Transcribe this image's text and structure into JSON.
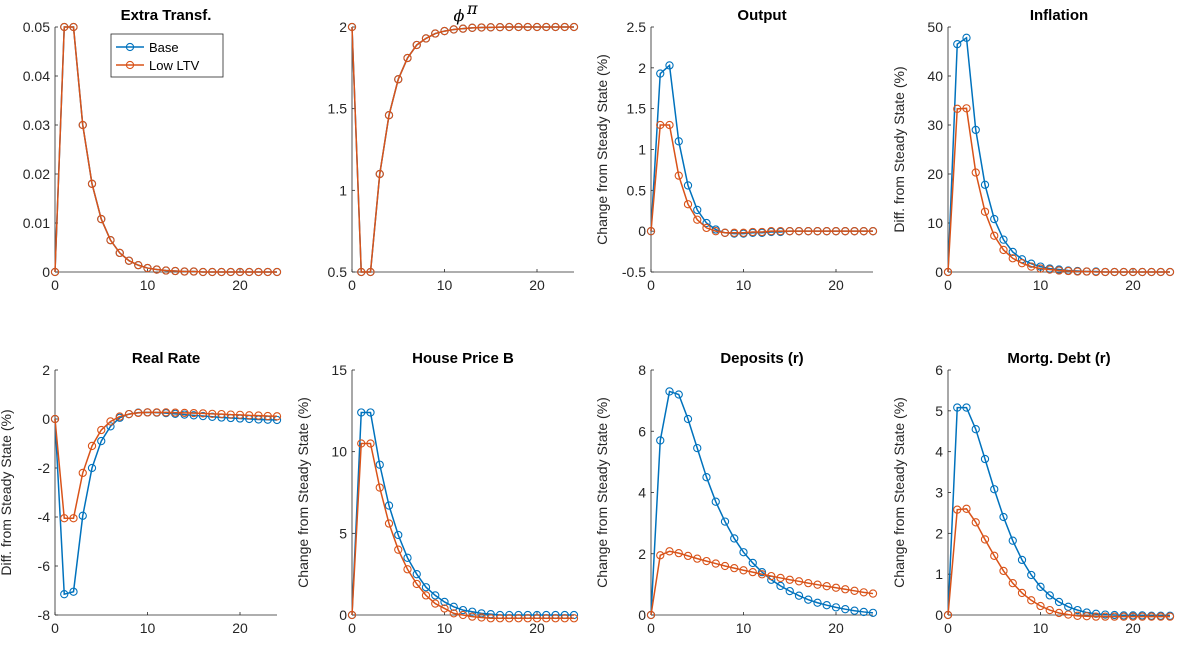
{
  "chart_data": [
    {
      "type": "line",
      "title": "Extra Transf.",
      "ylabel": "",
      "xlim": [
        0,
        24
      ],
      "ylim": [
        0,
        0.05
      ],
      "xticks": [
        0,
        10,
        20
      ],
      "xtick_labels": [
        "0",
        "10",
        "20"
      ],
      "yticks": [
        0,
        0.01,
        0.02,
        0.03,
        0.04,
        0.05
      ],
      "ytick_labels": [
        "0",
        "0.01",
        "0.02",
        "0.03",
        "0.04",
        "0.05"
      ],
      "x": [
        0,
        1,
        2,
        3,
        4,
        5,
        6,
        7,
        8,
        9,
        10,
        11,
        12,
        13,
        14,
        15,
        16,
        17,
        18,
        19,
        20,
        21,
        22,
        23,
        24
      ],
      "series": [
        {
          "name": "Base",
          "values": [
            0,
            0.05,
            0.05,
            0.03,
            0.018,
            0.0108,
            0.0065,
            0.0039,
            0.0023,
            0.0014,
            0.0008,
            0.0005,
            0.0003,
            0.0002,
            0.0001,
            0.0001,
            0,
            0,
            0,
            0,
            0,
            0,
            0,
            0,
            0
          ]
        },
        {
          "name": "Low LTV",
          "values": [
            0,
            0.05,
            0.05,
            0.03,
            0.018,
            0.0108,
            0.0065,
            0.0039,
            0.0023,
            0.0014,
            0.0008,
            0.0005,
            0.0003,
            0.0002,
            0.0001,
            0.0001,
            0,
            0,
            0,
            0,
            0,
            0,
            0,
            0,
            0
          ]
        }
      ],
      "legend": {
        "placement": "top-center",
        "entries": [
          "Base",
          "Low LTV"
        ]
      }
    },
    {
      "type": "line",
      "title": "ϕ",
      "title_superscript": "π",
      "ylabel": "",
      "xlim": [
        0,
        24
      ],
      "ylim": [
        0.5,
        2
      ],
      "xticks": [
        0,
        10,
        20
      ],
      "xtick_labels": [
        "0",
        "10",
        "20"
      ],
      "yticks": [
        0.5,
        1,
        1.5,
        2
      ],
      "ytick_labels": [
        "0.5",
        "1",
        "1.5",
        "2"
      ],
      "x": [
        0,
        1,
        2,
        3,
        4,
        5,
        6,
        7,
        8,
        9,
        10,
        11,
        12,
        13,
        14,
        15,
        16,
        17,
        18,
        19,
        20,
        21,
        22,
        23,
        24
      ],
      "series": [
        {
          "name": "Base",
          "values": [
            2,
            0.5,
            0.5,
            1.1,
            1.46,
            1.68,
            1.81,
            1.89,
            1.93,
            1.96,
            1.975,
            1.985,
            1.99,
            1.995,
            1.997,
            1.998,
            1.999,
            2,
            2,
            2,
            2,
            2,
            2,
            2,
            2
          ]
        },
        {
          "name": "Low LTV",
          "values": [
            2,
            0.5,
            0.5,
            1.1,
            1.46,
            1.68,
            1.81,
            1.89,
            1.93,
            1.96,
            1.975,
            1.985,
            1.99,
            1.995,
            1.997,
            1.998,
            1.999,
            2,
            2,
            2,
            2,
            2,
            2,
            2,
            2
          ]
        }
      ]
    },
    {
      "type": "line",
      "title": "Output",
      "ylabel": "Change from Steady State (%)",
      "xlim": [
        0,
        24
      ],
      "ylim": [
        -0.5,
        2.5
      ],
      "xticks": [
        0,
        10,
        20
      ],
      "xtick_labels": [
        "0",
        "10",
        "20"
      ],
      "yticks": [
        -0.5,
        0,
        0.5,
        1,
        1.5,
        2,
        2.5
      ],
      "ytick_labels": [
        "-0.5",
        "0",
        "0.5",
        "1",
        "1.5",
        "2",
        "2.5"
      ],
      "x": [
        0,
        1,
        2,
        3,
        4,
        5,
        6,
        7,
        8,
        9,
        10,
        11,
        12,
        13,
        14,
        15,
        16,
        17,
        18,
        19,
        20,
        21,
        22,
        23,
        24
      ],
      "series": [
        {
          "name": "Base",
          "values": [
            0,
            1.93,
            2.03,
            1.1,
            0.56,
            0.26,
            0.1,
            0.02,
            -0.02,
            -0.03,
            -0.03,
            -0.02,
            -0.02,
            -0.01,
            -0.01,
            0,
            0,
            0,
            0,
            0,
            0,
            0,
            0,
            0,
            0
          ]
        },
        {
          "name": "Low LTV",
          "values": [
            0,
            1.3,
            1.3,
            0.68,
            0.33,
            0.14,
            0.04,
            0,
            -0.02,
            -0.02,
            -0.02,
            -0.01,
            -0.01,
            0,
            0,
            0,
            0,
            0,
            0,
            0,
            0,
            0,
            0,
            0,
            0
          ]
        }
      ]
    },
    {
      "type": "line",
      "title": "Inflation",
      "ylabel": "Diff. from Steady State (%)",
      "xlim": [
        0,
        24
      ],
      "ylim": [
        0,
        50
      ],
      "xticks": [
        0,
        10,
        20
      ],
      "xtick_labels": [
        "0",
        "10",
        "20"
      ],
      "yticks": [
        0,
        10,
        20,
        30,
        40,
        50
      ],
      "ytick_labels": [
        "0",
        "10",
        "20",
        "30",
        "40",
        "50"
      ],
      "x": [
        0,
        1,
        2,
        3,
        4,
        5,
        6,
        7,
        8,
        9,
        10,
        11,
        12,
        13,
        14,
        15,
        16,
        17,
        18,
        19,
        20,
        21,
        22,
        23,
        24
      ],
      "series": [
        {
          "name": "Base",
          "values": [
            0,
            46.5,
            47.8,
            29,
            17.8,
            10.8,
            6.6,
            4.1,
            2.6,
            1.7,
            1.1,
            0.7,
            0.5,
            0.3,
            0.2,
            0.1,
            0.1,
            0,
            0,
            0,
            0,
            0,
            0,
            0,
            0
          ]
        },
        {
          "name": "Low LTV",
          "values": [
            0,
            33.3,
            33.4,
            20.3,
            12.3,
            7.4,
            4.5,
            2.8,
            1.8,
            1.1,
            0.7,
            0.5,
            0.3,
            0.2,
            0.1,
            0.1,
            0,
            0,
            0,
            0,
            0,
            0,
            0,
            0,
            0
          ]
        }
      ]
    },
    {
      "type": "line",
      "title": "Real Rate",
      "ylabel": "Diff. from Steady State (%)",
      "xlim": [
        0,
        24
      ],
      "ylim": [
        -8,
        2
      ],
      "xticks": [
        0,
        10,
        20
      ],
      "xtick_labels": [
        "0",
        "10",
        "20"
      ],
      "yticks": [
        -8,
        -6,
        -4,
        -2,
        0,
        2
      ],
      "ytick_labels": [
        "-8",
        "-6",
        "-4",
        "-2",
        "0",
        "2"
      ],
      "x": [
        0,
        1,
        2,
        3,
        4,
        5,
        6,
        7,
        8,
        9,
        10,
        11,
        12,
        13,
        14,
        15,
        16,
        17,
        18,
        19,
        20,
        21,
        22,
        23,
        24
      ],
      "series": [
        {
          "name": "Base",
          "values": [
            0,
            -7.15,
            -7.05,
            -3.95,
            -2,
            -0.9,
            -0.3,
            0.05,
            0.2,
            0.26,
            0.27,
            0.26,
            0.24,
            0.21,
            0.18,
            0.15,
            0.12,
            0.09,
            0.06,
            0.04,
            0.02,
            0,
            -0.02,
            -0.03,
            -0.04
          ]
        },
        {
          "name": "Low LTV",
          "values": [
            0,
            -4.05,
            -4.05,
            -2.2,
            -1.1,
            -0.45,
            -0.1,
            0.1,
            0.2,
            0.25,
            0.27,
            0.27,
            0.27,
            0.26,
            0.25,
            0.24,
            0.23,
            0.21,
            0.2,
            0.18,
            0.17,
            0.15,
            0.14,
            0.12,
            0.11
          ]
        }
      ]
    },
    {
      "type": "line",
      "title": "House Price B",
      "ylabel": "Change from Steady State (%)",
      "xlim": [
        0,
        24
      ],
      "ylim": [
        0,
        15
      ],
      "xticks": [
        0,
        10,
        20
      ],
      "xtick_labels": [
        "0",
        "10",
        "20"
      ],
      "yticks": [
        0,
        5,
        10,
        15
      ],
      "ytick_labels": [
        "0",
        "5",
        "10",
        "15"
      ],
      "x": [
        0,
        1,
        2,
        3,
        4,
        5,
        6,
        7,
        8,
        9,
        10,
        11,
        12,
        13,
        14,
        15,
        16,
        17,
        18,
        19,
        20,
        21,
        22,
        23,
        24
      ],
      "series": [
        {
          "name": "Base",
          "values": [
            0,
            12.4,
            12.4,
            9.2,
            6.7,
            4.9,
            3.5,
            2.5,
            1.7,
            1.2,
            0.8,
            0.5,
            0.3,
            0.2,
            0.1,
            0.05,
            0,
            0,
            0,
            0,
            0,
            0,
            0,
            0,
            0
          ]
        },
        {
          "name": "Low LTV",
          "values": [
            0,
            10.5,
            10.5,
            7.8,
            5.6,
            4,
            2.8,
            1.9,
            1.2,
            0.7,
            0.4,
            0.1,
            0,
            -0.1,
            -0.15,
            -0.2,
            -0.2,
            -0.2,
            -0.2,
            -0.2,
            -0.2,
            -0.2,
            -0.2,
            -0.2,
            -0.2
          ]
        }
      ]
    },
    {
      "type": "line",
      "title": "Deposits (r)",
      "ylabel": "Change from Steady State (%)",
      "xlim": [
        0,
        24
      ],
      "ylim": [
        0,
        8
      ],
      "xticks": [
        0,
        10,
        20
      ],
      "xtick_labels": [
        "0",
        "10",
        "20"
      ],
      "yticks": [
        0,
        2,
        4,
        6,
        8
      ],
      "ytick_labels": [
        "0",
        "2",
        "4",
        "6",
        "8"
      ],
      "x": [
        0,
        1,
        2,
        3,
        4,
        5,
        6,
        7,
        8,
        9,
        10,
        11,
        12,
        13,
        14,
        15,
        16,
        17,
        18,
        19,
        20,
        21,
        22,
        23,
        24
      ],
      "series": [
        {
          "name": "Base",
          "values": [
            0,
            5.7,
            7.3,
            7.2,
            6.4,
            5.45,
            4.5,
            3.7,
            3.05,
            2.5,
            2.05,
            1.7,
            1.4,
            1.15,
            0.95,
            0.78,
            0.63,
            0.5,
            0.4,
            0.32,
            0.25,
            0.19,
            0.14,
            0.1,
            0.07
          ]
        },
        {
          "name": "Low LTV",
          "values": [
            0,
            1.95,
            2.08,
            2.02,
            1.93,
            1.84,
            1.76,
            1.68,
            1.6,
            1.53,
            1.46,
            1.4,
            1.33,
            1.27,
            1.21,
            1.15,
            1.1,
            1.04,
            0.99,
            0.94,
            0.89,
            0.84,
            0.79,
            0.74,
            0.7
          ]
        }
      ]
    },
    {
      "type": "line",
      "title": "Mortg. Debt (r)",
      "ylabel": "Change from Steady State (%)",
      "xlim": [
        0,
        24
      ],
      "ylim": [
        0,
        6
      ],
      "xticks": [
        0,
        10,
        20
      ],
      "xtick_labels": [
        "0",
        "10",
        "20"
      ],
      "yticks": [
        0,
        1,
        2,
        3,
        4,
        5,
        6
      ],
      "ytick_labels": [
        "0",
        "1",
        "2",
        "3",
        "4",
        "5",
        "6"
      ],
      "x": [
        0,
        1,
        2,
        3,
        4,
        5,
        6,
        7,
        8,
        9,
        10,
        11,
        12,
        13,
        14,
        15,
        16,
        17,
        18,
        19,
        20,
        21,
        22,
        23,
        24
      ],
      "series": [
        {
          "name": "Base",
          "values": [
            0,
            5.08,
            5.08,
            4.55,
            3.82,
            3.08,
            2.4,
            1.82,
            1.35,
            0.98,
            0.69,
            0.48,
            0.32,
            0.2,
            0.12,
            0.06,
            0.03,
            0.01,
            0,
            -0.01,
            -0.01,
            -0.01,
            -0.02,
            -0.02,
            -0.02
          ]
        },
        {
          "name": "Low LTV",
          "values": [
            0,
            2.58,
            2.6,
            2.27,
            1.85,
            1.45,
            1.08,
            0.78,
            0.54,
            0.36,
            0.22,
            0.12,
            0.05,
            0.01,
            -0.02,
            -0.03,
            -0.04,
            -0.04,
            -0.04,
            -0.04,
            -0.04,
            -0.04,
            -0.04,
            -0.04,
            -0.04
          ]
        }
      ]
    }
  ],
  "colors": {
    "base": "#0072BD",
    "low_ltv": "#D95319",
    "axis": "#262626"
  }
}
